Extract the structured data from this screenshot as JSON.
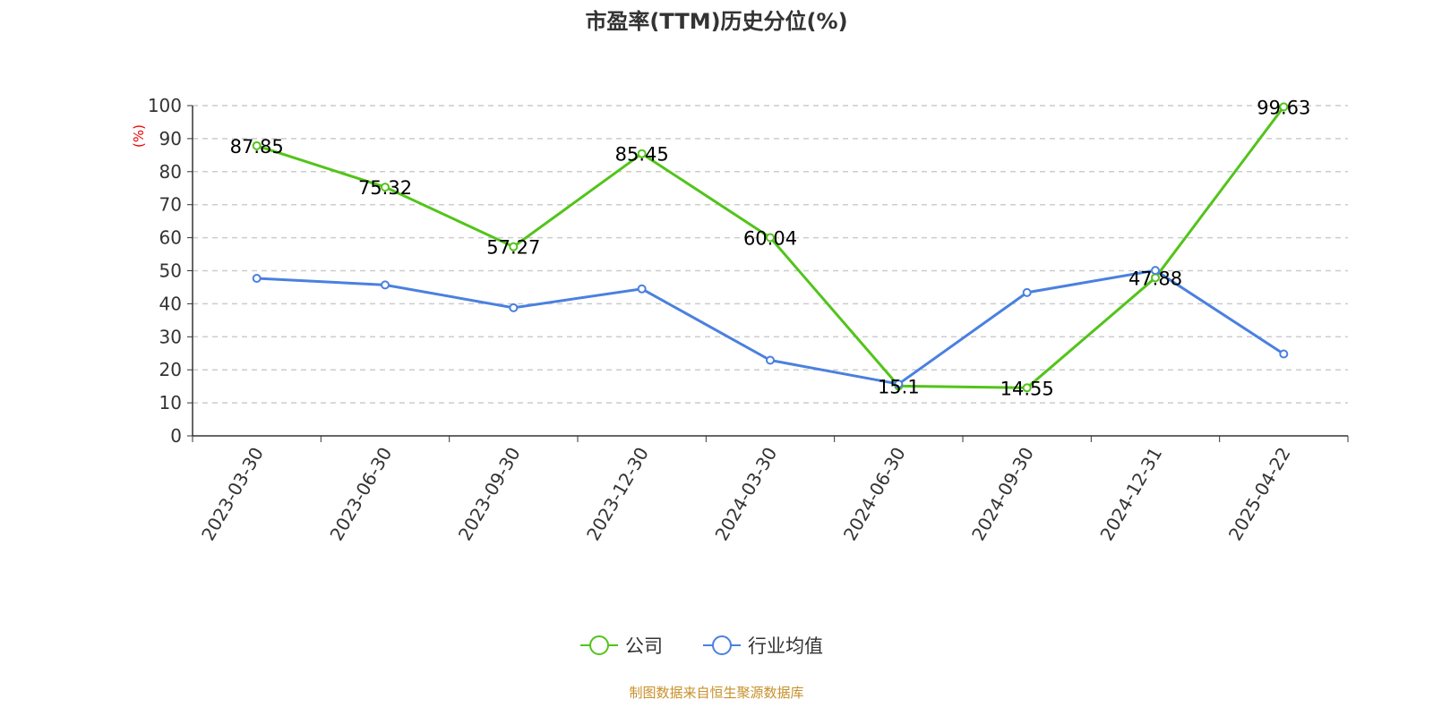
{
  "chart_data": {
    "type": "line",
    "title": "市盈率(TTM)历史分位(%)",
    "ylabel": "(%)",
    "ylim": [
      0,
      100
    ],
    "yticks": [
      0,
      10,
      20,
      30,
      40,
      50,
      60,
      70,
      80,
      90,
      100
    ],
    "grid": true,
    "legend_position": "bottom",
    "categories": [
      "2023-03-30",
      "2023-06-30",
      "2023-09-30",
      "2023-12-30",
      "2024-03-30",
      "2024-06-30",
      "2024-09-30",
      "2024-12-31",
      "2025-04-22"
    ],
    "series": [
      {
        "name": "公司",
        "color": "#52c41a",
        "values": [
          87.85,
          75.32,
          57.27,
          85.45,
          60.04,
          15.1,
          14.55,
          47.88,
          99.63
        ],
        "show_labels": true
      },
      {
        "name": "行业均值",
        "color": "#4a80e0",
        "values": [
          47.7,
          45.7,
          38.8,
          44.5,
          22.9,
          15.7,
          43.4,
          50.1,
          24.8
        ],
        "show_labels": false
      }
    ]
  },
  "source": "制图数据来自恒生聚源数据库"
}
